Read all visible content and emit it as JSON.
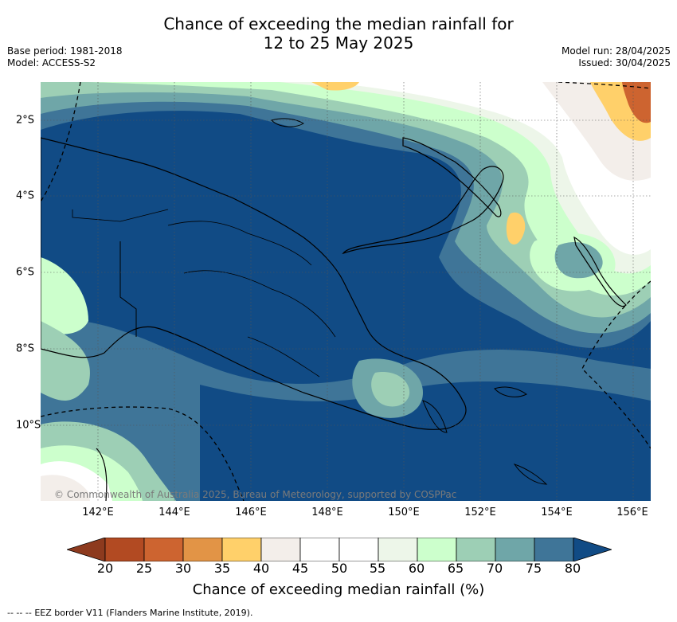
{
  "title": {
    "line1": "Chance of exceeding the median rainfall for",
    "line2": "12 to 25 May 2025"
  },
  "meta": {
    "base_period": "Base period: 1981-2018",
    "model": "Model: ACCESS-S2",
    "model_run": "Model run: 28/04/2025",
    "issued": "Issued: 30/04/2025"
  },
  "map": {
    "longitude_labels": [
      "142°E",
      "144°E",
      "146°E",
      "148°E",
      "150°E",
      "152°E",
      "154°E",
      "156°E"
    ],
    "latitude_labels": [
      "2°S",
      "4°S",
      "6°S",
      "8°S",
      "10°S"
    ],
    "credit": "© Commonwealth of Australia 2025, Bureau of Meteorology, supported by COSPPac",
    "land_outline_color": "#000000",
    "eez_border_style": "dashed"
  },
  "colorbar": {
    "ticks": [
      "20",
      "25",
      "30",
      "35",
      "40",
      "45",
      "50",
      "55",
      "60",
      "65",
      "70",
      "75",
      "80"
    ],
    "colors": [
      "#8d3a1e",
      "#b24a22",
      "#cd6430",
      "#e29446",
      "#ffd06a",
      "#f3eeea",
      "#ffffff",
      "#ffffff",
      "#edf6e9",
      "#ccffcc",
      "#9dcfb5",
      "#6fa6a8",
      "#3f7598",
      "#114b85"
    ],
    "label": "Chance of exceeding median rainfall (%)"
  },
  "legend": {
    "marker": "--  --  --",
    "text": "EEZ border V11 (Flanders Marine Institute, 2019)."
  }
}
